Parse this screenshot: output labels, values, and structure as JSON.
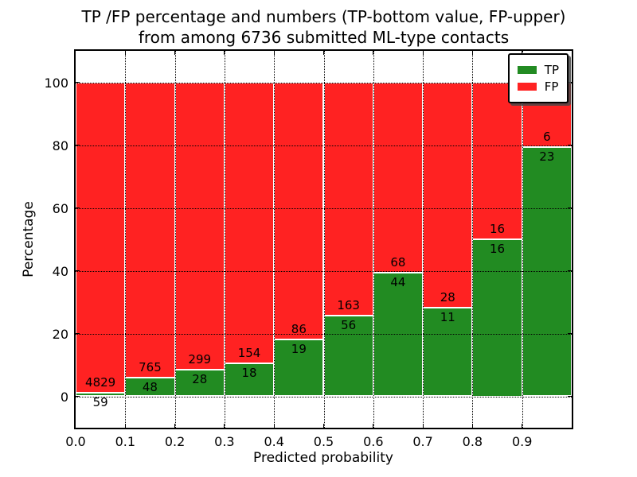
{
  "title": {
    "line1": "TP /FP percentage and numbers (TP-bottom value, FP-upper)",
    "line2": "from among 6736 submitted ML-type contacts"
  },
  "axes": {
    "xlabel": "Predicted probability",
    "ylabel": "Percentage",
    "x_ticklabels": [
      "0.0",
      "0.1",
      "0.2",
      "0.3",
      "0.4",
      "0.5",
      "0.6",
      "0.7",
      "0.8",
      "0.9"
    ],
    "x_tickvalues": [
      0.0,
      0.1,
      0.2,
      0.3,
      0.4,
      0.5,
      0.6,
      0.7,
      0.8,
      0.9
    ],
    "y_ticklabels": [
      "0",
      "20",
      "40",
      "60",
      "80",
      "100"
    ],
    "y_tickvalues": [
      0,
      20,
      40,
      60,
      80,
      100
    ]
  },
  "legend": {
    "items": [
      {
        "label": "TP",
        "color": "#228B22"
      },
      {
        "label": "FP",
        "color": "#FF2222"
      }
    ]
  },
  "chart_data": {
    "type": "bar",
    "stacked": true,
    "normalized_to_percent": true,
    "title": "TP /FP percentage and numbers (TP-bottom value, FP-upper) from among 6736 submitted ML-type contacts",
    "xlabel": "Predicted probability",
    "ylabel": "Percentage",
    "categories": [
      "0.0-0.1",
      "0.1-0.2",
      "0.2-0.3",
      "0.3-0.4",
      "0.4-0.5",
      "0.5-0.6",
      "0.6-0.7",
      "0.7-0.8",
      "0.8-0.9",
      "0.9-1.0"
    ],
    "bin_edges": [
      0.0,
      0.1,
      0.2,
      0.3,
      0.4,
      0.5,
      0.6,
      0.7,
      0.8,
      0.9,
      1.0
    ],
    "series": [
      {
        "name": "TP",
        "color": "#228B22",
        "counts": [
          59,
          48,
          28,
          18,
          19,
          56,
          44,
          11,
          16,
          23
        ]
      },
      {
        "name": "FP",
        "color": "#FF2222",
        "counts": [
          4829,
          765,
          299,
          154,
          86,
          163,
          68,
          28,
          16,
          6
        ]
      }
    ],
    "tp_percent": [
      1.21,
      5.9,
      8.56,
      10.47,
      18.1,
      25.57,
      39.29,
      28.21,
      50.0,
      79.31
    ],
    "total_contacts": 6736,
    "xlim": [
      0.0,
      1.0
    ],
    "ylim": [
      -10,
      110
    ],
    "grid": "dotted black, on x ticks and y ticks, drawn over bars",
    "legend_position": "upper right",
    "bar_edge_color": "#ffffff"
  }
}
